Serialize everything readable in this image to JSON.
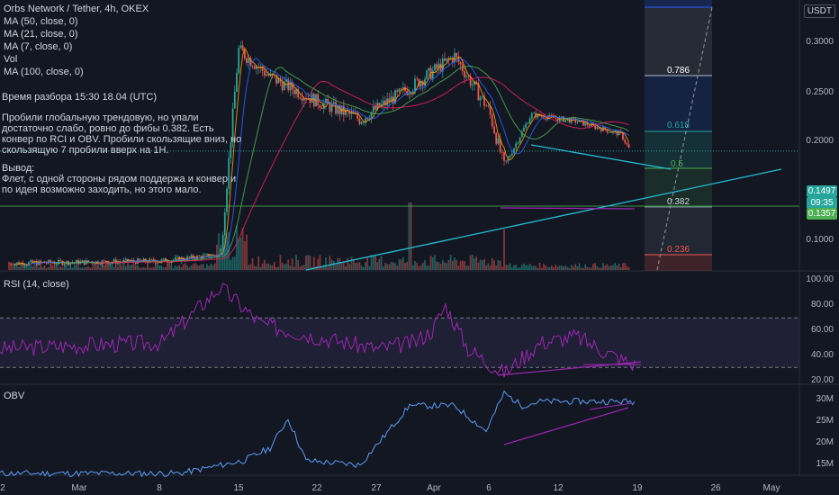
{
  "header": {
    "symbol": "Orbs Network / Tether, 4h, OKEX",
    "indicators": [
      "MA (50, close, 0)",
      "MA (21, close, 0)",
      "MA (7, close, 0)",
      "Vol",
      "MA (100, close, 0)"
    ],
    "currency": "USDT"
  },
  "notes": {
    "time": "Время разбора 15:30 18.04 (UTC)",
    "analysis": "Пробили глобальную трендовую, но упали\nдостаточно слабо, ровно до фибы 0.382. Есть\nконвер по RCI и OBV. Пробили скользящие вниз, но\nскользящую 7 пробили вверх на 1H.",
    "conclusion": "Вывод:\nФлет, с одной стороны рядом поддержа и конвер и\nпо идея возможно заходить, но этого мало."
  },
  "price_axis": [
    "0.3000",
    "0.2500",
    "0.2000",
    "0.1000"
  ],
  "price_boxes": {
    "current": "0.1497",
    "countdown": "09:35",
    "support": "0.1357"
  },
  "fib": [
    "0.786",
    "0.618",
    "0.5",
    "0.382",
    "0.236"
  ],
  "rsi": {
    "label": "RSI (14, close)",
    "axis": [
      "100.00",
      "80.00",
      "60.00",
      "40.00",
      "20.00"
    ]
  },
  "obv": {
    "label": "OBV",
    "axis": [
      "30M",
      "25M",
      "20M",
      "15M"
    ]
  },
  "x_axis": [
    "2",
    "Mar",
    "8",
    "15",
    "22",
    "27",
    "Apr",
    "6",
    "12",
    "19",
    "26",
    "May"
  ],
  "colors": {
    "background": "#131722",
    "up": "#26a69a",
    "down": "#ef5350",
    "rsi": "#9c27b0",
    "obv": "#5b9cf6",
    "trendline": "#22bcd4"
  },
  "chart_data": {
    "type": "candlestick",
    "title": "Orbs Network / Tether, 4h, OKEX",
    "y_scale": "log",
    "ylim": [
      0.075,
      0.36
    ],
    "anchors": [
      {
        "x": "Feb 26",
        "price": 0.078
      },
      {
        "x": "Mar 8",
        "price": 0.079
      },
      {
        "x": "Mar 13",
        "price": 0.082
      },
      {
        "x": "Mar 15",
        "price": 0.27
      },
      {
        "x": "Mar 17",
        "price": 0.23
      },
      {
        "x": "Mar 22",
        "price": 0.2
      },
      {
        "x": "Mar 26",
        "price": 0.18
      },
      {
        "x": "Mar 30",
        "price": 0.22
      },
      {
        "x": "Apr 1",
        "price": 0.26
      },
      {
        "x": "Apr 5",
        "price": 0.19
      },
      {
        "x": "Apr 7",
        "price": 0.137
      },
      {
        "x": "Apr 10",
        "price": 0.185
      },
      {
        "x": "Apr 14",
        "price": 0.178
      },
      {
        "x": "Apr 17",
        "price": 0.165
      },
      {
        "x": "Apr 18",
        "price": 0.1497
      }
    ],
    "series": [
      {
        "name": "RSI (14, close)",
        "values": [
          45,
          48,
          50,
          95,
          65,
          55,
          45,
          50,
          60,
          80,
          45,
          25,
          50,
          55,
          40,
          32
        ]
      },
      {
        "name": "OBV",
        "values": [
          12,
          12,
          12,
          15,
          18,
          25,
          15,
          14,
          28,
          28,
          22,
          31,
          28,
          29,
          29,
          29
        ]
      }
    ]
  }
}
